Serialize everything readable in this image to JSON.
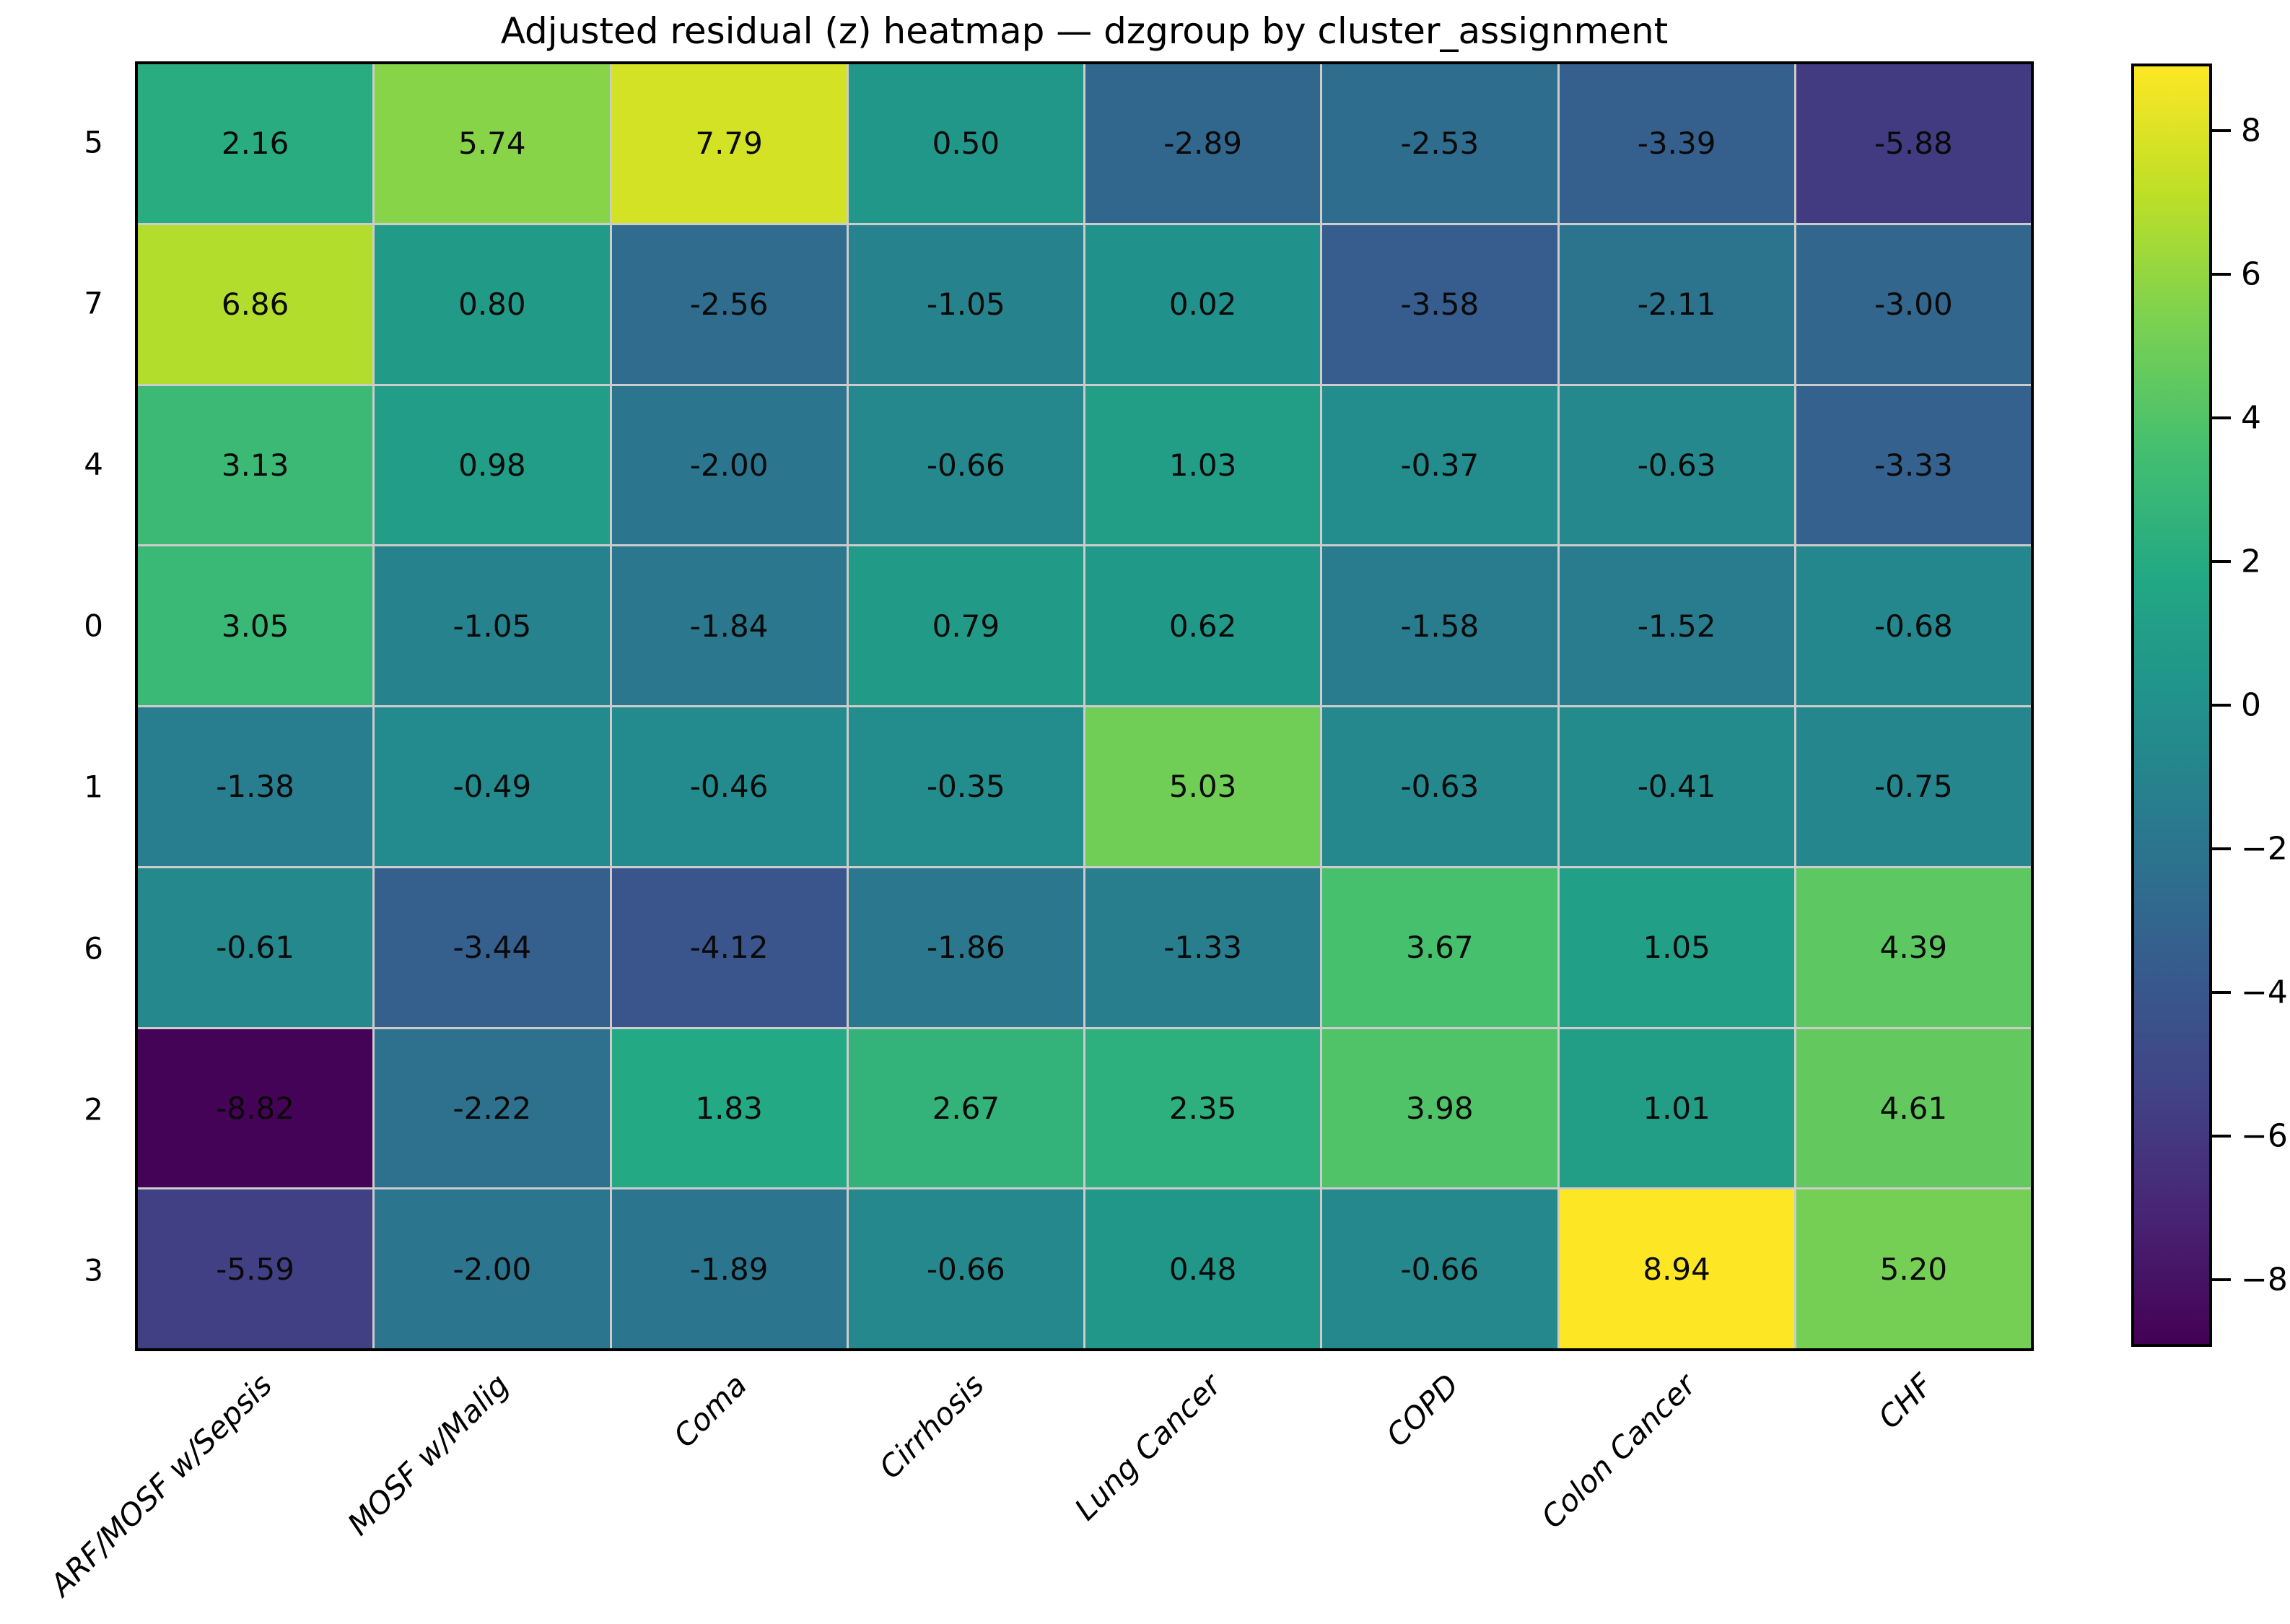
{
  "chart_data": {
    "type": "heatmap",
    "title": "Adjusted residual (z) heatmap — dzgroup by cluster_assignment",
    "xlabel": "",
    "ylabel": "",
    "row_labels": [
      "5",
      "7",
      "4",
      "0",
      "1",
      "6",
      "2",
      "3"
    ],
    "col_labels": [
      "ARF/MOSF w/Sepsis",
      "MOSF w/Malig",
      "Coma",
      "Cirrhosis",
      "Lung Cancer",
      "COPD",
      "Colon Cancer",
      "CHF"
    ],
    "values": [
      [
        2.16,
        5.74,
        7.79,
        0.5,
        -2.89,
        -2.53,
        -3.39,
        -5.88
      ],
      [
        6.86,
        0.8,
        -2.56,
        -1.05,
        0.02,
        -3.58,
        -2.11,
        -3.0
      ],
      [
        3.13,
        0.98,
        -2.0,
        -0.66,
        1.03,
        -0.37,
        -0.63,
        -3.33
      ],
      [
        3.05,
        -1.05,
        -1.84,
        0.79,
        0.62,
        -1.58,
        -1.52,
        -0.68
      ],
      [
        -1.38,
        -0.49,
        -0.46,
        -0.35,
        5.03,
        -0.63,
        -0.41,
        -0.75
      ],
      [
        -0.61,
        -3.44,
        -4.12,
        -1.86,
        -1.33,
        3.67,
        1.05,
        4.39
      ],
      [
        -8.82,
        -2.22,
        1.83,
        2.67,
        2.35,
        3.98,
        1.01,
        4.61
      ],
      [
        -5.59,
        -2.0,
        -1.89,
        -0.66,
        0.48,
        -0.66,
        8.94,
        5.2
      ]
    ],
    "value_format_decimals": 2,
    "colormap": "viridis",
    "vmin": -8.94,
    "vmax": 8.94,
    "colorbar_ticks": [
      8,
      6,
      4,
      2,
      0,
      -2,
      -4,
      -6,
      -8
    ],
    "gridline_color": "#cccccc",
    "annotation_color": "#0a0a0a",
    "legend_position": "right-colorbar"
  }
}
